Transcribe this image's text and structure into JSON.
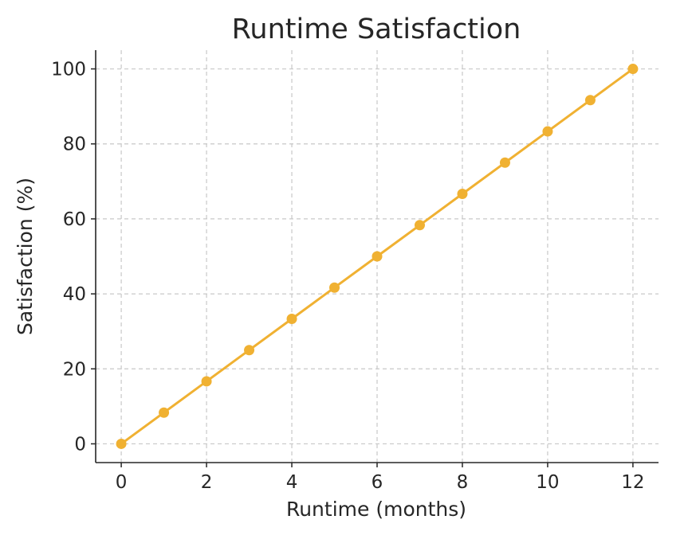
{
  "chart_data": {
    "type": "line",
    "title": "Runtime Satisfaction",
    "xlabel": "Runtime (months)",
    "ylabel": "Satisfaction (%)",
    "xlim": [
      -0.6,
      12.6
    ],
    "ylim": [
      -5,
      105
    ],
    "xticks": [
      0,
      2,
      4,
      6,
      8,
      10,
      12
    ],
    "yticks": [
      0,
      20,
      40,
      60,
      80,
      100
    ],
    "grid": true,
    "color": "#f0b132",
    "series": [
      {
        "x": [
          0,
          1,
          2,
          3,
          4,
          5,
          6,
          7,
          8,
          9,
          10,
          11,
          12
        ],
        "y": [
          0,
          8.33,
          16.67,
          25,
          33.33,
          41.67,
          50,
          58.33,
          66.67,
          75,
          83.33,
          91.67,
          100
        ]
      }
    ]
  }
}
